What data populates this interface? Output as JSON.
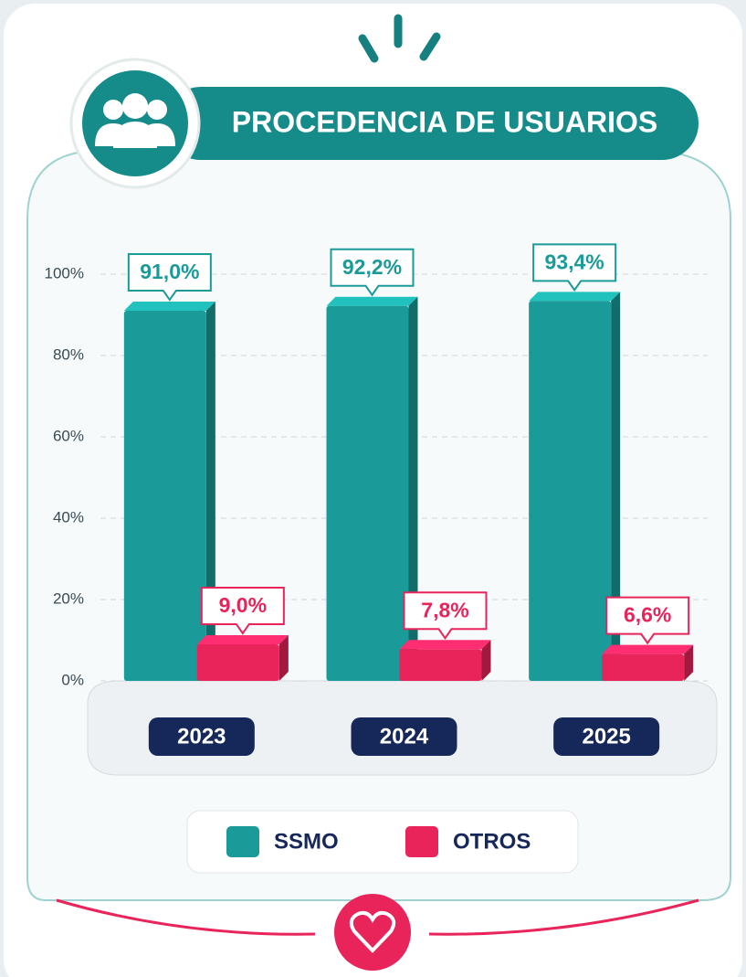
{
  "chart_data": {
    "type": "bar",
    "title": "PROCEDENCIA DE USUARIOS",
    "categories": [
      "2023",
      "2024",
      "2025"
    ],
    "series": [
      {
        "name": "SSMO",
        "color": "#1a9a98",
        "values": [
          91.0,
          92.2,
          93.4
        ],
        "value_labels": [
          "91,0%",
          "92,2%",
          "93,4%"
        ]
      },
      {
        "name": "OTROS",
        "color": "#e8245a",
        "values": [
          9.0,
          7.8,
          6.6
        ],
        "value_labels": [
          "9,0%",
          "7,8%",
          "6,6%"
        ]
      }
    ],
    "ylim": [
      0,
      100
    ],
    "yticks": [
      {
        "value": 0,
        "label": "0%"
      },
      {
        "value": 20,
        "label": "20%"
      },
      {
        "value": 40,
        "label": "40%"
      },
      {
        "value": 60,
        "label": "60%"
      },
      {
        "value": 80,
        "label": "80%"
      },
      {
        "value": 100,
        "label": "100%"
      }
    ],
    "grid": true,
    "legend": "bottom"
  }
}
